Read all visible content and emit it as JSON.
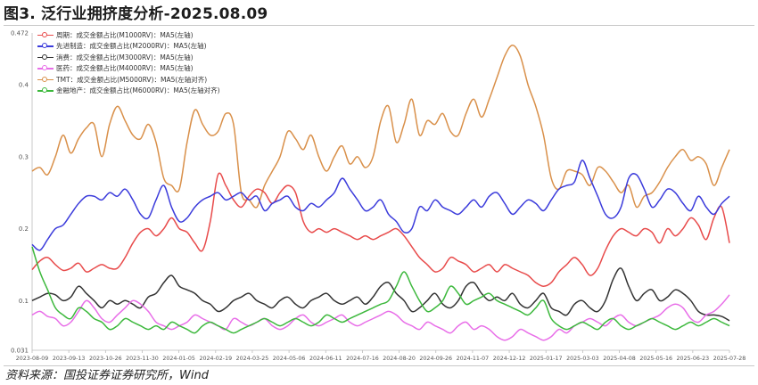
{
  "title": "图3. 泛行业拥挤度分析-2025.08.09",
  "source": "资料来源：国投证券证券研究所，Wind",
  "chart_data": {
    "type": "line",
    "ylim": [
      0.031,
      0.472
    ],
    "y_ticks": [
      "0.472",
      "0.4",
      "0.3",
      "0.2",
      "0.1",
      "0.031"
    ],
    "y_tick_values": [
      0.472,
      0.4,
      0.3,
      0.2,
      0.1,
      0.031
    ],
    "x_start": "2023-08-09",
    "x_end": "2025-08-09",
    "x_ticks": [
      "2023-08-09",
      "2023-09-13",
      "2023-10-26",
      "2023-11-30",
      "2024-01-05",
      "2024-02-19",
      "2024-03-25",
      "2024-05-06",
      "2024-06-11",
      "2024-07-16",
      "2024-08-20",
      "2024-09-26",
      "2024-11-07",
      "2024-12-12",
      "2025-01-17",
      "2025-03-03",
      "2025-04-08",
      "2025-05-16",
      "2025-06-23",
      "2025-07-28"
    ],
    "grid": false,
    "legend_position": "top-left",
    "series": [
      {
        "name": "周期：成交金额占比(M1000RV)：MA5(左轴)",
        "color": "#e84b4b",
        "values": [
          0.143,
          0.155,
          0.16,
          0.15,
          0.142,
          0.145,
          0.152,
          0.14,
          0.145,
          0.15,
          0.145,
          0.145,
          0.16,
          0.18,
          0.195,
          0.2,
          0.19,
          0.2,
          0.215,
          0.2,
          0.195,
          0.18,
          0.17,
          0.21,
          0.275,
          0.26,
          0.24,
          0.23,
          0.245,
          0.255,
          0.25,
          0.235,
          0.25,
          0.26,
          0.25,
          0.21,
          0.195,
          0.2,
          0.195,
          0.2,
          0.195,
          0.19,
          0.185,
          0.19,
          0.185,
          0.19,
          0.195,
          0.2,
          0.19,
          0.175,
          0.16,
          0.15,
          0.14,
          0.145,
          0.16,
          0.155,
          0.15,
          0.14,
          0.145,
          0.15,
          0.14,
          0.15,
          0.145,
          0.14,
          0.135,
          0.125,
          0.12,
          0.125,
          0.14,
          0.15,
          0.16,
          0.15,
          0.135,
          0.145,
          0.17,
          0.19,
          0.2,
          0.195,
          0.19,
          0.2,
          0.195,
          0.18,
          0.2,
          0.19,
          0.2,
          0.215,
          0.205,
          0.185,
          0.215,
          0.23,
          0.18
        ]
      },
      {
        "name": "先进制造：成交金额占比(M2000RV)：MA5(左轴)",
        "color": "#3b3bdb",
        "values": [
          0.178,
          0.17,
          0.185,
          0.2,
          0.205,
          0.22,
          0.235,
          0.245,
          0.245,
          0.24,
          0.25,
          0.245,
          0.255,
          0.24,
          0.22,
          0.215,
          0.24,
          0.26,
          0.23,
          0.21,
          0.215,
          0.23,
          0.24,
          0.245,
          0.25,
          0.24,
          0.245,
          0.25,
          0.24,
          0.245,
          0.225,
          0.235,
          0.24,
          0.245,
          0.23,
          0.225,
          0.235,
          0.23,
          0.24,
          0.25,
          0.27,
          0.255,
          0.24,
          0.225,
          0.23,
          0.24,
          0.22,
          0.21,
          0.195,
          0.2,
          0.23,
          0.225,
          0.24,
          0.23,
          0.225,
          0.22,
          0.23,
          0.24,
          0.23,
          0.245,
          0.25,
          0.235,
          0.22,
          0.23,
          0.24,
          0.235,
          0.225,
          0.24,
          0.255,
          0.26,
          0.265,
          0.295,
          0.27,
          0.245,
          0.22,
          0.215,
          0.23,
          0.27,
          0.275,
          0.255,
          0.23,
          0.24,
          0.255,
          0.25,
          0.235,
          0.225,
          0.245,
          0.23,
          0.22,
          0.235,
          0.245
        ]
      },
      {
        "name": "消费：成交金额占比(M3000RV)：MA5(左轴)",
        "color": "#333333",
        "values": [
          0.1,
          0.105,
          0.11,
          0.108,
          0.1,
          0.105,
          0.12,
          0.11,
          0.1,
          0.09,
          0.1,
          0.095,
          0.1,
          0.095,
          0.09,
          0.105,
          0.11,
          0.125,
          0.135,
          0.12,
          0.115,
          0.11,
          0.1,
          0.095,
          0.085,
          0.09,
          0.1,
          0.105,
          0.11,
          0.1,
          0.095,
          0.09,
          0.1,
          0.105,
          0.095,
          0.09,
          0.1,
          0.105,
          0.11,
          0.1,
          0.095,
          0.1,
          0.105,
          0.095,
          0.105,
          0.12,
          0.125,
          0.11,
          0.1,
          0.085,
          0.09,
          0.1,
          0.11,
          0.095,
          0.09,
          0.1,
          0.12,
          0.125,
          0.11,
          0.1,
          0.105,
          0.1,
          0.11,
          0.095,
          0.09,
          0.1,
          0.11,
          0.09,
          0.085,
          0.08,
          0.095,
          0.1,
          0.09,
          0.085,
          0.1,
          0.13,
          0.145,
          0.12,
          0.1,
          0.11,
          0.115,
          0.1,
          0.105,
          0.115,
          0.11,
          0.1,
          0.085,
          0.08,
          0.08,
          0.078,
          0.072
        ]
      },
      {
        "name": "医药：成交金额占比(M4000RV)：MA5(左轴)",
        "color": "#e86ee8",
        "values": [
          0.08,
          0.085,
          0.078,
          0.075,
          0.065,
          0.07,
          0.085,
          0.1,
          0.09,
          0.075,
          0.07,
          0.08,
          0.09,
          0.1,
          0.095,
          0.085,
          0.07,
          0.065,
          0.06,
          0.065,
          0.07,
          0.08,
          0.075,
          0.07,
          0.065,
          0.06,
          0.075,
          0.07,
          0.065,
          0.07,
          0.075,
          0.065,
          0.06,
          0.065,
          0.075,
          0.08,
          0.07,
          0.065,
          0.07,
          0.075,
          0.08,
          0.07,
          0.065,
          0.07,
          0.075,
          0.08,
          0.085,
          0.08,
          0.07,
          0.065,
          0.06,
          0.07,
          0.065,
          0.06,
          0.055,
          0.065,
          0.07,
          0.06,
          0.065,
          0.06,
          0.05,
          0.045,
          0.05,
          0.06,
          0.055,
          0.05,
          0.045,
          0.05,
          0.06,
          0.055,
          0.065,
          0.07,
          0.075,
          0.07,
          0.065,
          0.075,
          0.08,
          0.07,
          0.065,
          0.07,
          0.075,
          0.08,
          0.09,
          0.095,
          0.09,
          0.075,
          0.07,
          0.08,
          0.085,
          0.095,
          0.108
        ]
      },
      {
        "name": "TMT：成交金额占比(M5000RV)：MA5(左轴对齐)",
        "color": "#d9904a",
        "values": [
          0.28,
          0.285,
          0.275,
          0.3,
          0.33,
          0.305,
          0.325,
          0.34,
          0.345,
          0.3,
          0.345,
          0.37,
          0.35,
          0.33,
          0.325,
          0.345,
          0.32,
          0.27,
          0.26,
          0.255,
          0.32,
          0.365,
          0.345,
          0.33,
          0.335,
          0.36,
          0.345,
          0.25,
          0.24,
          0.23,
          0.26,
          0.28,
          0.3,
          0.335,
          0.325,
          0.31,
          0.33,
          0.3,
          0.28,
          0.3,
          0.315,
          0.29,
          0.3,
          0.285,
          0.3,
          0.35,
          0.37,
          0.32,
          0.345,
          0.38,
          0.33,
          0.35,
          0.345,
          0.36,
          0.335,
          0.33,
          0.36,
          0.38,
          0.355,
          0.38,
          0.41,
          0.44,
          0.455,
          0.44,
          0.4,
          0.37,
          0.33,
          0.27,
          0.255,
          0.28,
          0.28,
          0.275,
          0.26,
          0.285,
          0.28,
          0.265,
          0.25,
          0.26,
          0.23,
          0.245,
          0.25,
          0.265,
          0.285,
          0.3,
          0.31,
          0.295,
          0.3,
          0.29,
          0.26,
          0.285,
          0.31
        ]
      },
      {
        "name": "金融地产：成交金额占比(M6000RV)：MA5(左轴对齐)",
        "color": "#3cb83c",
        "values": [
          0.175,
          0.14,
          0.115,
          0.09,
          0.08,
          0.075,
          0.09,
          0.085,
          0.075,
          0.07,
          0.06,
          0.065,
          0.075,
          0.07,
          0.065,
          0.06,
          0.065,
          0.06,
          0.07,
          0.065,
          0.06,
          0.055,
          0.065,
          0.07,
          0.065,
          0.06,
          0.055,
          0.06,
          0.065,
          0.07,
          0.075,
          0.07,
          0.065,
          0.07,
          0.075,
          0.07,
          0.065,
          0.07,
          0.08,
          0.075,
          0.07,
          0.075,
          0.08,
          0.085,
          0.09,
          0.095,
          0.1,
          0.12,
          0.14,
          0.12,
          0.1,
          0.085,
          0.09,
          0.1,
          0.12,
          0.11,
          0.095,
          0.1,
          0.105,
          0.11,
          0.1,
          0.095,
          0.09,
          0.085,
          0.08,
          0.09,
          0.1,
          0.075,
          0.065,
          0.06,
          0.065,
          0.07,
          0.065,
          0.06,
          0.07,
          0.075,
          0.065,
          0.06,
          0.065,
          0.07,
          0.075,
          0.07,
          0.065,
          0.06,
          0.065,
          0.07,
          0.065,
          0.07,
          0.075,
          0.07,
          0.065
        ]
      }
    ]
  }
}
